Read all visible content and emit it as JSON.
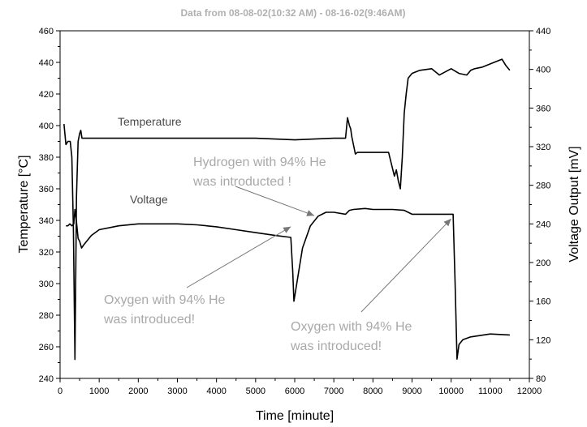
{
  "chart_data": {
    "type": "line",
    "title": "Data from   08-08-02(10:32 AM)   -   08-16-02(9:46AM)",
    "xlabel": "Time [minute]",
    "ylabel": "Temperature [°C]",
    "y2label": "Voltage Output [mV]",
    "xlim": [
      0,
      12000
    ],
    "ylim": [
      240,
      460
    ],
    "y2lim": [
      80,
      440
    ],
    "xticks": [
      0,
      1000,
      2000,
      3000,
      4000,
      5000,
      6000,
      7000,
      8000,
      9000,
      10000,
      11000,
      12000
    ],
    "yticks": [
      240,
      260,
      280,
      300,
      320,
      340,
      360,
      380,
      400,
      420,
      440,
      460
    ],
    "y2ticks": [
      80,
      120,
      160,
      200,
      240,
      280,
      320,
      360,
      400,
      440
    ],
    "grid": false,
    "series": [
      {
        "name": "Temperature",
        "axis": "left",
        "color": "#000000",
        "x": [
          100,
          150,
          200,
          260,
          300,
          340,
          380,
          420,
          460,
          500,
          530,
          560,
          600,
          1000,
          2000,
          3000,
          4000,
          5000,
          6000,
          7000,
          7300,
          7350,
          7400,
          7430,
          7460,
          7500,
          7550,
          7600,
          8000,
          8400,
          8550,
          8600,
          8650,
          8700,
          8750,
          8800,
          8850,
          8900,
          9000,
          9200,
          9500,
          9700,
          10000,
          10200,
          10400,
          10500,
          10600,
          10800,
          11000,
          11200,
          11300,
          11400,
          11500
        ],
        "y": [
          401,
          388,
          390,
          390,
          380,
          335,
          252,
          355,
          390,
          395,
          397,
          392,
          392,
          392,
          392,
          392,
          392,
          392,
          391,
          392,
          392,
          405,
          400,
          398,
          393,
          388,
          382,
          383,
          383,
          383,
          368,
          372,
          365,
          360,
          380,
          408,
          420,
          430,
          433,
          435,
          436,
          432,
          436,
          433,
          432,
          435,
          436,
          437,
          439,
          441,
          442,
          438,
          435
        ]
      },
      {
        "name": "Voltage",
        "axis": "right",
        "color": "#000000",
        "x": [
          150,
          200,
          250,
          300,
          350,
          380,
          420,
          460,
          500,
          550,
          600,
          800,
          1000,
          1500,
          2000,
          2500,
          3000,
          3500,
          4000,
          4500,
          5000,
          5500,
          5900,
          5950,
          5980,
          6000,
          6100,
          6200,
          6400,
          6600,
          6800,
          7000,
          7300,
          7400,
          7500,
          7800,
          8000,
          8500,
          8800,
          9000,
          9500,
          10000,
          10050,
          10100,
          10150,
          10200,
          10300,
          10500,
          11000,
          11500
        ],
        "y": [
          238,
          238,
          240,
          238,
          240,
          255,
          242,
          225,
          222,
          215,
          218,
          228,
          234,
          238,
          240,
          240,
          240,
          239,
          237,
          234,
          231,
          228,
          226,
          190,
          160,
          165,
          190,
          215,
          238,
          248,
          252,
          252,
          250,
          254,
          255,
          256,
          255,
          255,
          254,
          250,
          250,
          250,
          250,
          180,
          100,
          115,
          120,
          123,
          126,
          125
        ]
      }
    ],
    "series_labels": {
      "temperature": {
        "text": "Temperature"
      },
      "voltage": {
        "text": "Voltage"
      }
    },
    "annotations": [
      {
        "line1": "Hydrogen with 94% He",
        "line2": "was introducted !",
        "arrow_to": [
          6500,
          343
        ]
      },
      {
        "line1": "Oxygen with 94% He",
        "line2": "was introduced!",
        "arrow_to": [
          5900,
          336
        ]
      },
      {
        "line1": "Oxygen with 94% He",
        "line2": "was introduced!",
        "arrow_to": [
          10000,
          341
        ]
      }
    ]
  }
}
